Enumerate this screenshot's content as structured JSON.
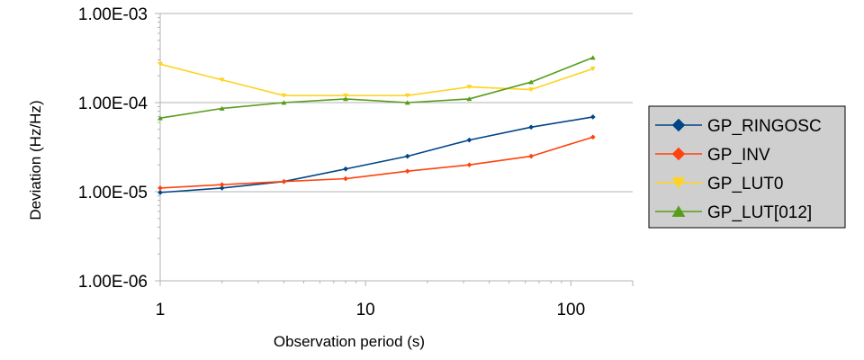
{
  "chart_data": {
    "type": "line",
    "xlabel": "Observation period (s)",
    "ylabel": "Deviation (Hz/Hz)",
    "x_scale": "log",
    "y_scale": "log",
    "xlim": [
      1,
      200
    ],
    "ylim": [
      1e-06,
      0.001
    ],
    "x_ticks": [
      {
        "value": 1,
        "label": "1"
      },
      {
        "value": 10,
        "label": "10"
      },
      {
        "value": 100,
        "label": "100"
      }
    ],
    "y_ticks": [
      {
        "value": 1e-06,
        "label": "1.00E-06"
      },
      {
        "value": 1e-05,
        "label": "1.00E-05"
      },
      {
        "value": 0.0001,
        "label": "1.00E-04"
      },
      {
        "value": 0.001,
        "label": "1.00E-03"
      }
    ],
    "grid": "horizontal major",
    "legend_position": "right",
    "x": [
      1,
      2,
      4,
      8,
      16,
      32,
      64,
      128
    ],
    "series": [
      {
        "name": "GP_RINGOSC",
        "color": "#004586",
        "marker": "diamond",
        "values": [
          9.8e-06,
          1.1e-05,
          1.3e-05,
          1.8e-05,
          2.5e-05,
          3.8e-05,
          5.3e-05,
          6.9e-05
        ]
      },
      {
        "name": "GP_INV",
        "color": "#ff420e",
        "marker": "diamond",
        "values": [
          1.1e-05,
          1.2e-05,
          1.3e-05,
          1.4e-05,
          1.7e-05,
          2e-05,
          2.5e-05,
          4.1e-05
        ]
      },
      {
        "name": "GP_LUT0",
        "color": "#ffd320",
        "marker": "triangle-down",
        "values": [
          0.00027,
          0.00018,
          0.00012,
          0.00012,
          0.00012,
          0.00015,
          0.00014,
          0.00024
        ]
      },
      {
        "name": "GP_LUT[012]",
        "color": "#579d1c",
        "marker": "triangle-up",
        "values": [
          6.7e-05,
          8.6e-05,
          0.0001,
          0.00011,
          0.0001,
          0.00011,
          0.00017,
          0.00032
        ]
      }
    ]
  }
}
